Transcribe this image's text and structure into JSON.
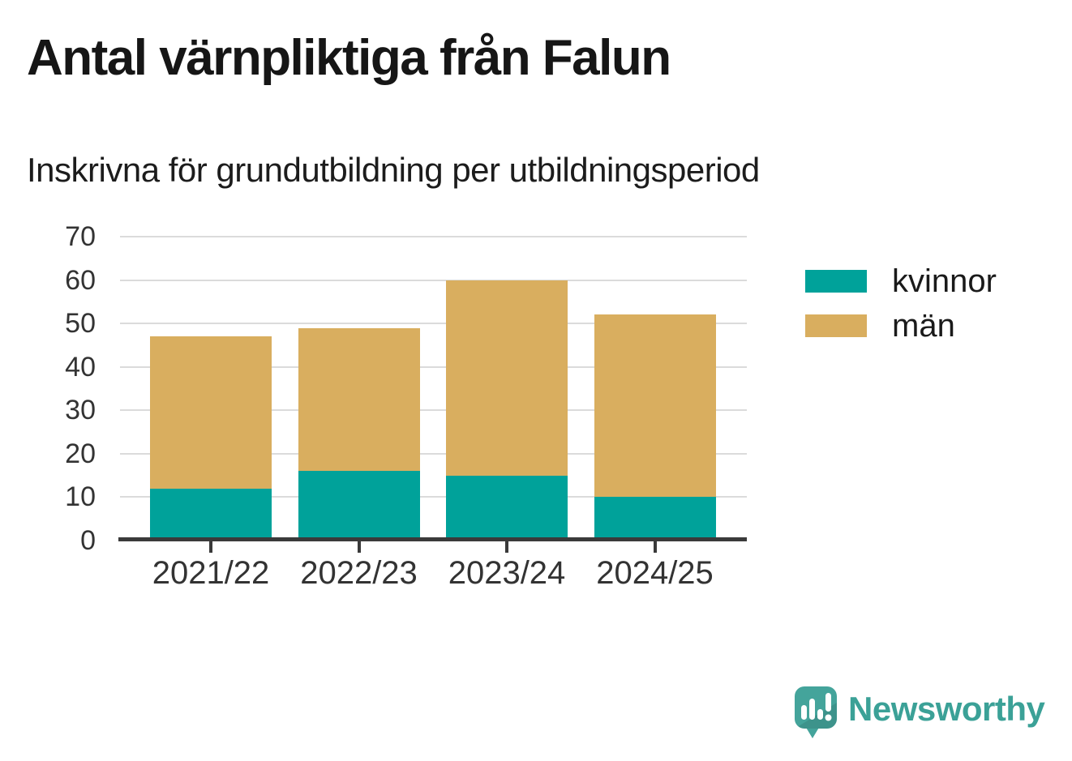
{
  "chart_data": {
    "type": "bar",
    "stacked": true,
    "title": "Antal värnpliktiga från Falun",
    "subtitle": "Inskrivna för grundutbildning per utbildningsperiod",
    "categories": [
      "2021/22",
      "2022/23",
      "2023/24",
      "2024/25"
    ],
    "series": [
      {
        "name": "kvinnor",
        "color": "#00A29A",
        "values": [
          12,
          16,
          15,
          10
        ]
      },
      {
        "name": "män",
        "color": "#D9AE5F",
        "values": [
          35,
          33,
          45,
          42
        ]
      }
    ],
    "stack_totals": [
      47,
      49,
      60,
      52
    ],
    "xlabel": "",
    "ylabel": "",
    "ylim": [
      0,
      70
    ],
    "yticks": [
      0,
      10,
      20,
      30,
      40,
      50,
      60,
      70
    ],
    "grid": true,
    "legend_position": "right"
  },
  "branding": {
    "name": "Newsworthy"
  },
  "colors": {
    "axis": "#3A3A3A",
    "grid": "#DBDBDB",
    "title_text": "#161616",
    "tick_label": "#333333",
    "background": "#FFFFFF",
    "logo_teal": "#44A49B",
    "logo_text": "#3BA197"
  }
}
